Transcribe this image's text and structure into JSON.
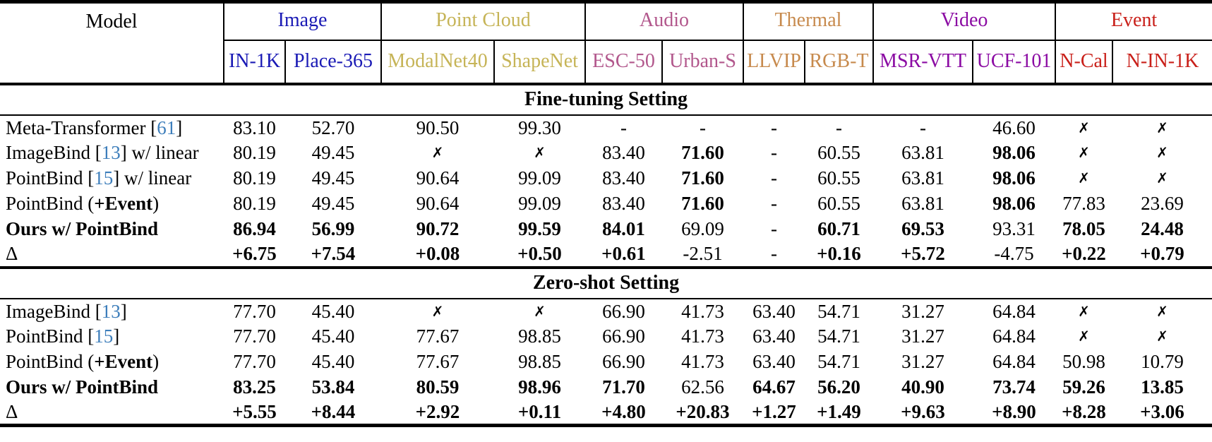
{
  "table": {
    "model_header": "Model",
    "citation_color": "#3d7ebb",
    "groups": [
      {
        "label": "Image",
        "color": "#1a1ab5",
        "datasets": [
          "IN-1K",
          "Place-365"
        ]
      },
      {
        "label": "Point Cloud",
        "color": "#c6b457",
        "datasets": [
          "ModalNet40",
          "ShapeNet"
        ]
      },
      {
        "label": "Audio",
        "color": "#b2578c",
        "datasets": [
          "ESC-50",
          "Urban-S"
        ]
      },
      {
        "label": "Thermal",
        "color": "#c78a4d",
        "datasets": [
          "LLVIP",
          "RGB-T"
        ]
      },
      {
        "label": "Video",
        "color": "#8b0ba3",
        "datasets": [
          "MSR-VTT",
          "UCF-101"
        ]
      },
      {
        "label": "Event",
        "color": "#c9201a",
        "datasets": [
          "N-Cal",
          "N-IN-1K"
        ]
      }
    ],
    "sections": [
      {
        "title": "Fine-tuning Setting",
        "rows": [
          {
            "model": [
              {
                "t": "Meta-Transformer ["
              },
              {
                "t": "61",
                "cite": true
              },
              {
                "t": "]"
              }
            ],
            "cells": [
              {
                "v": "83.10"
              },
              {
                "v": "52.70"
              },
              {
                "v": "90.50"
              },
              {
                "v": "99.30"
              },
              {
                "v": "-"
              },
              {
                "v": "-"
              },
              {
                "v": "-"
              },
              {
                "v": "-"
              },
              {
                "v": "-"
              },
              {
                "v": "46.60"
              },
              {
                "v": "✗",
                "x": true
              },
              {
                "v": "✗",
                "x": true
              }
            ]
          },
          {
            "model": [
              {
                "t": "ImageBind ["
              },
              {
                "t": "13",
                "cite": true
              },
              {
                "t": "] w/ linear"
              }
            ],
            "cells": [
              {
                "v": "80.19"
              },
              {
                "v": "49.45"
              },
              {
                "v": "✗",
                "x": true
              },
              {
                "v": "✗",
                "x": true
              },
              {
                "v": "83.40"
              },
              {
                "v": "71.60",
                "b": true
              },
              {
                "v": "-"
              },
              {
                "v": "60.55"
              },
              {
                "v": "63.81"
              },
              {
                "v": "98.06",
                "b": true
              },
              {
                "v": "✗",
                "x": true
              },
              {
                "v": "✗",
                "x": true
              }
            ]
          },
          {
            "model": [
              {
                "t": "PointBind ["
              },
              {
                "t": "15",
                "cite": true
              },
              {
                "t": "] w/ linear"
              }
            ],
            "cells": [
              {
                "v": "80.19"
              },
              {
                "v": "49.45"
              },
              {
                "v": "90.64"
              },
              {
                "v": "99.09"
              },
              {
                "v": "83.40"
              },
              {
                "v": "71.60",
                "b": true
              },
              {
                "v": "-"
              },
              {
                "v": "60.55"
              },
              {
                "v": "63.81"
              },
              {
                "v": "98.06",
                "b": true
              },
              {
                "v": "✗",
                "x": true
              },
              {
                "v": "✗",
                "x": true
              }
            ]
          },
          {
            "model": [
              {
                "t": "PointBind ("
              },
              {
                "t": "+Event",
                "b": true
              },
              {
                "t": ")"
              }
            ],
            "cells": [
              {
                "v": "80.19"
              },
              {
                "v": "49.45"
              },
              {
                "v": "90.64"
              },
              {
                "v": "99.09"
              },
              {
                "v": "83.40"
              },
              {
                "v": "71.60",
                "b": true
              },
              {
                "v": "-"
              },
              {
                "v": "60.55"
              },
              {
                "v": "63.81"
              },
              {
                "v": "98.06",
                "b": true
              },
              {
                "v": "77.83"
              },
              {
                "v": "23.69"
              }
            ]
          },
          {
            "model": [
              {
                "t": "Ours w/ PointBind",
                "b": true
              }
            ],
            "cells": [
              {
                "v": "86.94",
                "b": true
              },
              {
                "v": "56.99",
                "b": true
              },
              {
                "v": "90.72",
                "b": true
              },
              {
                "v": "99.59",
                "b": true
              },
              {
                "v": "84.01",
                "b": true
              },
              {
                "v": "69.09"
              },
              {
                "v": "-"
              },
              {
                "v": "60.71",
                "b": true
              },
              {
                "v": "69.53",
                "b": true
              },
              {
                "v": "93.31"
              },
              {
                "v": "78.05",
                "b": true
              },
              {
                "v": "24.48",
                "b": true
              }
            ]
          },
          {
            "model": [
              {
                "t": "Δ"
              }
            ],
            "cells": [
              {
                "v": "+6.75",
                "b": true
              },
              {
                "v": "+7.54",
                "b": true
              },
              {
                "v": "+0.08",
                "b": true
              },
              {
                "v": "+0.50",
                "b": true
              },
              {
                "v": "+0.61",
                "b": true
              },
              {
                "v": "-2.51"
              },
              {
                "v": "-"
              },
              {
                "v": "+0.16",
                "b": true
              },
              {
                "v": "+5.72",
                "b": true
              },
              {
                "v": "-4.75"
              },
              {
                "v": "+0.22",
                "b": true
              },
              {
                "v": "+0.79",
                "b": true
              }
            ]
          }
        ]
      },
      {
        "title": "Zero-shot Setting",
        "rows": [
          {
            "model": [
              {
                "t": "ImageBind ["
              },
              {
                "t": "13",
                "cite": true
              },
              {
                "t": "]"
              }
            ],
            "cells": [
              {
                "v": "77.70"
              },
              {
                "v": "45.40"
              },
              {
                "v": "✗",
                "x": true
              },
              {
                "v": "✗",
                "x": true
              },
              {
                "v": "66.90"
              },
              {
                "v": "41.73"
              },
              {
                "v": "63.40"
              },
              {
                "v": "54.71"
              },
              {
                "v": "31.27"
              },
              {
                "v": "64.84"
              },
              {
                "v": "✗",
                "x": true
              },
              {
                "v": "✗",
                "x": true
              }
            ]
          },
          {
            "model": [
              {
                "t": "PointBind ["
              },
              {
                "t": "15",
                "cite": true
              },
              {
                "t": "]"
              }
            ],
            "cells": [
              {
                "v": "77.70"
              },
              {
                "v": "45.40"
              },
              {
                "v": "77.67"
              },
              {
                "v": "98.85"
              },
              {
                "v": "66.90"
              },
              {
                "v": "41.73"
              },
              {
                "v": "63.40"
              },
              {
                "v": "54.71"
              },
              {
                "v": "31.27"
              },
              {
                "v": "64.84"
              },
              {
                "v": "✗",
                "x": true
              },
              {
                "v": "✗",
                "x": true
              }
            ]
          },
          {
            "model": [
              {
                "t": "PointBind ("
              },
              {
                "t": "+Event",
                "b": true
              },
              {
                "t": ")"
              }
            ],
            "cells": [
              {
                "v": "77.70"
              },
              {
                "v": "45.40"
              },
              {
                "v": "77.67"
              },
              {
                "v": "98.85"
              },
              {
                "v": "66.90"
              },
              {
                "v": "41.73"
              },
              {
                "v": "63.40"
              },
              {
                "v": "54.71"
              },
              {
                "v": "31.27"
              },
              {
                "v": "64.84"
              },
              {
                "v": "50.98"
              },
              {
                "v": "10.79"
              }
            ]
          },
          {
            "model": [
              {
                "t": "Ours w/ PointBind",
                "b": true
              }
            ],
            "cells": [
              {
                "v": "83.25",
                "b": true
              },
              {
                "v": "53.84",
                "b": true
              },
              {
                "v": "80.59",
                "b": true
              },
              {
                "v": "98.96",
                "b": true
              },
              {
                "v": "71.70",
                "b": true
              },
              {
                "v": "62.56"
              },
              {
                "v": "64.67",
                "b": true
              },
              {
                "v": "56.20",
                "b": true
              },
              {
                "v": "40.90",
                "b": true
              },
              {
                "v": "73.74",
                "b": true
              },
              {
                "v": "59.26",
                "b": true
              },
              {
                "v": "13.85",
                "b": true
              }
            ]
          },
          {
            "model": [
              {
                "t": "Δ"
              }
            ],
            "cells": [
              {
                "v": "+5.55",
                "b": true
              },
              {
                "v": "+8.44",
                "b": true
              },
              {
                "v": "+2.92",
                "b": true
              },
              {
                "v": "+0.11",
                "b": true
              },
              {
                "v": "+4.80",
                "b": true
              },
              {
                "v": "+20.83",
                "b": true
              },
              {
                "v": "+1.27",
                "b": true
              },
              {
                "v": "+1.49",
                "b": true
              },
              {
                "v": "+9.63",
                "b": true
              },
              {
                "v": "+8.90",
                "b": true
              },
              {
                "v": "+8.28",
                "b": true
              },
              {
                "v": "+3.06",
                "b": true
              }
            ]
          }
        ]
      }
    ]
  }
}
